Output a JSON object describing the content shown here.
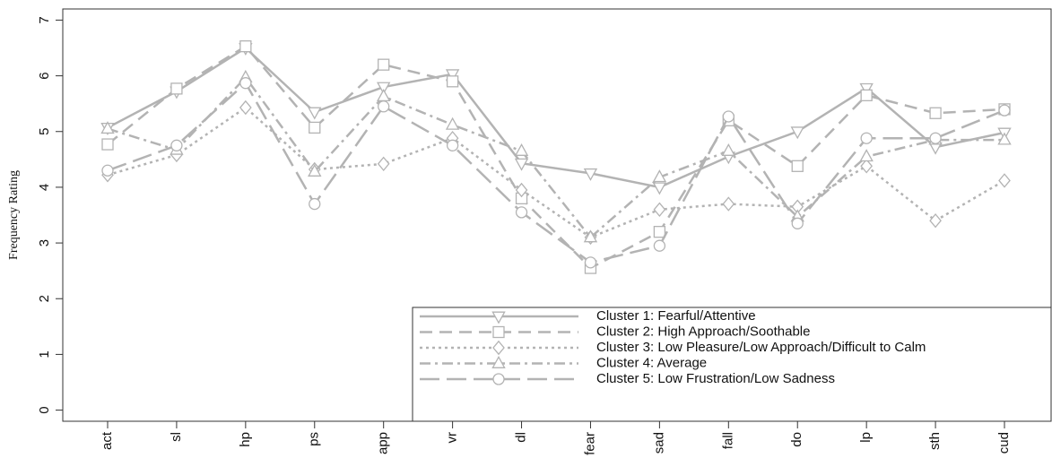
{
  "chart_data": {
    "type": "line",
    "y_label": "Frequency Rating",
    "categories": [
      "act",
      "sl",
      "hp",
      "ps",
      "app",
      "vr",
      "dl",
      "fear",
      "sad",
      "fall",
      "do",
      "lp",
      "sth",
      "cud"
    ],
    "ylim": [
      -0.2,
      7.2
    ],
    "yticks": [
      0,
      1,
      2,
      3,
      4,
      5,
      6,
      7
    ],
    "legend": "bottom-right",
    "series": [
      {
        "name": "Cluster 1: Fearful/Attentive",
        "color": "#b3b3b3",
        "dash": "solid",
        "marker": "triangle-down",
        "values": [
          5.07,
          5.72,
          6.5,
          5.35,
          5.8,
          6.03,
          4.43,
          4.25,
          4.0,
          4.55,
          5.0,
          5.78,
          4.72,
          4.98
        ]
      },
      {
        "name": "Cluster 2: High Approach/Soothable",
        "color": "#b3b3b3",
        "dash": "dashed",
        "marker": "square",
        "values": [
          4.77,
          5.77,
          6.53,
          5.07,
          6.2,
          5.9,
          3.8,
          2.55,
          3.2,
          5.2,
          4.38,
          5.65,
          5.33,
          5.4
        ]
      },
      {
        "name": "Cluster 3: Low Pleasure/Low Approach/Difficult to Calm",
        "color": "#b3b3b3",
        "dash": "dotted",
        "marker": "diamond",
        "values": [
          4.22,
          4.58,
          5.43,
          4.32,
          4.42,
          4.88,
          3.95,
          3.1,
          3.6,
          3.7,
          3.65,
          4.38,
          3.4,
          4.12
        ]
      },
      {
        "name": "Cluster 4: Average",
        "color": "#b3b3b3",
        "dash": "dotdash",
        "marker": "triangle-up",
        "values": [
          5.05,
          4.67,
          5.97,
          4.28,
          5.63,
          5.12,
          4.65,
          3.1,
          4.18,
          4.65,
          3.47,
          4.55,
          4.85,
          4.85
        ]
      },
      {
        "name": "Cluster 5: Low Frustration/Low Sadness",
        "color": "#b3b3b3",
        "dash": "longdash",
        "marker": "circle",
        "values": [
          4.3,
          4.75,
          5.87,
          3.7,
          5.45,
          4.75,
          3.55,
          2.65,
          2.95,
          5.27,
          3.35,
          4.88,
          4.88,
          5.38
        ]
      }
    ]
  }
}
